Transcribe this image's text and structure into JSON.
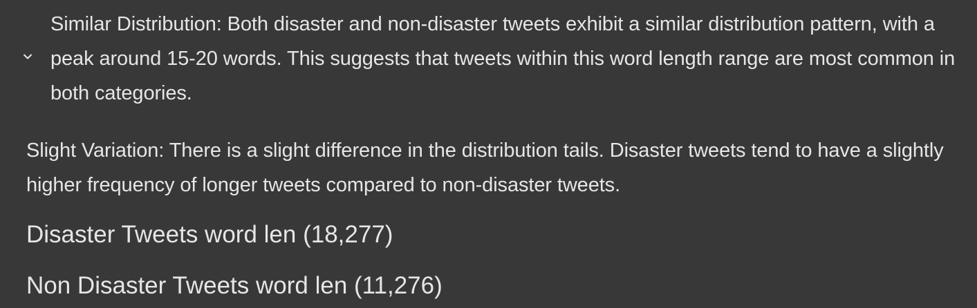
{
  "notebook": {
    "paragraphs": [
      {
        "text": "Similar Distribution: Both disaster and non-disaster tweets exhibit a similar distribution pattern, with a peak around 15-20 words. This suggests that tweets within this word length range are most common in both categories."
      },
      {
        "text": "Slight Variation: There is a slight difference in the distribution tails. Disaster tweets tend to have a slightly higher frequency of longer tweets compared to non-disaster tweets."
      }
    ],
    "headings": [
      {
        "text": "Disaster Tweets word len (18,277)"
      },
      {
        "text": "Non Disaster Tweets word len (11,276)"
      }
    ],
    "toggle_icon": "chevron-down-icon",
    "colors": {
      "background": "#383838",
      "text": "#e6e6e6"
    }
  }
}
